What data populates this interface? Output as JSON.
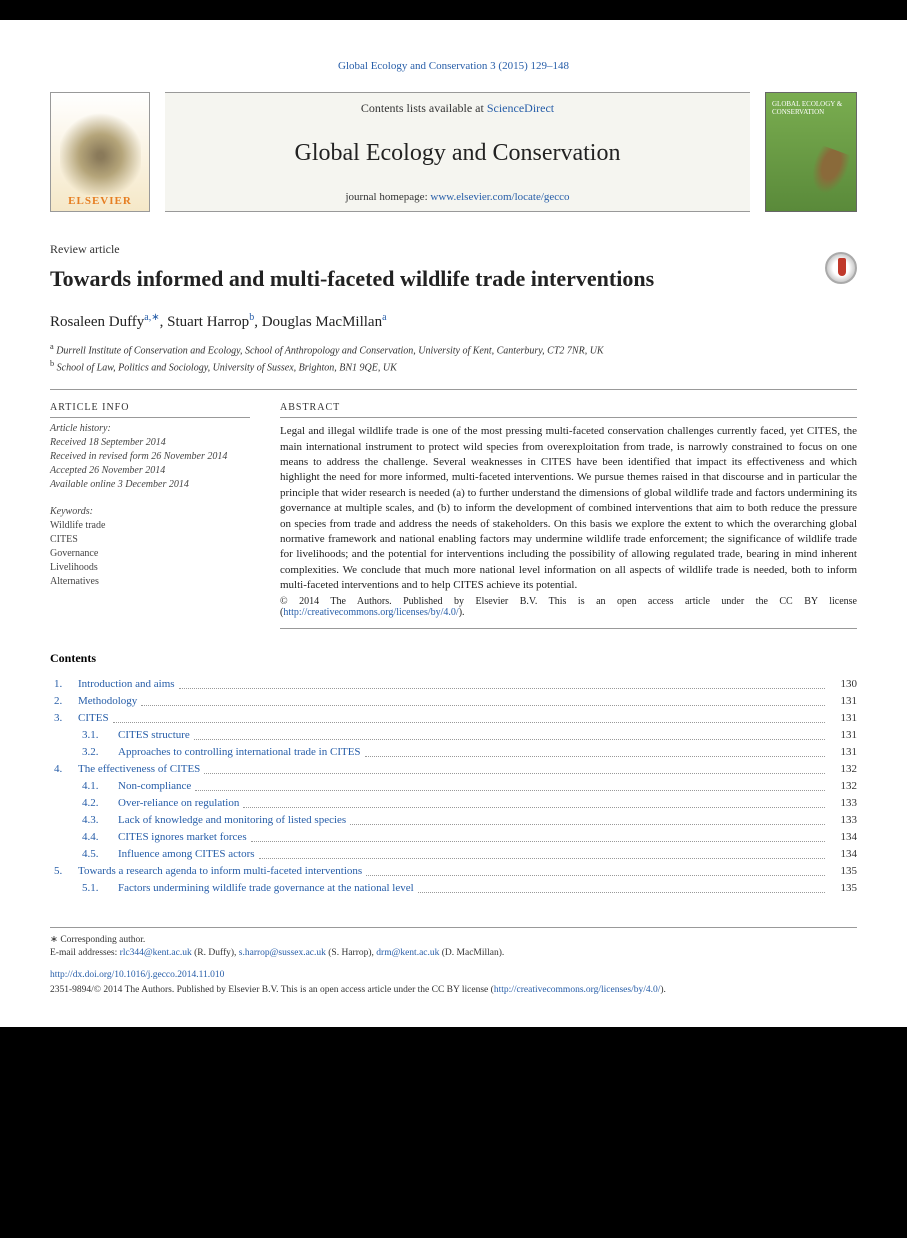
{
  "citation": "Global Ecology and Conservation 3 (2015) 129–148",
  "header": {
    "contents_prefix": "Contents lists available at ",
    "sciencedirect": "ScienceDirect",
    "journal": "Global Ecology and Conservation",
    "homepage_prefix": "journal homepage: ",
    "homepage_url": "www.elsevier.com/locate/gecco",
    "elsevier": "ELSEVIER",
    "cover_text": "GLOBAL ECOLOGY & CONSERVATION"
  },
  "article_type": "Review article",
  "title": "Towards informed and multi-faceted wildlife trade interventions",
  "authors": [
    {
      "name": "Rosaleen Duffy",
      "sup": "a,∗"
    },
    {
      "name": "Stuart Harrop",
      "sup": "b"
    },
    {
      "name": "Douglas MacMillan",
      "sup": "a"
    }
  ],
  "affiliations": [
    {
      "sup": "a",
      "text": "Durrell Institute of Conservation and Ecology, School of Anthropology and Conservation, University of Kent, Canterbury, CT2 7NR, UK"
    },
    {
      "sup": "b",
      "text": "School of Law, Politics and Sociology, University of Sussex, Brighton, BN1 9QE, UK"
    }
  ],
  "info_heading": "ARTICLE INFO",
  "history_heading": "Article history:",
  "history": [
    "Received 18 September 2014",
    "Received in revised form 26 November 2014",
    "Accepted 26 November 2014",
    "Available online 3 December 2014"
  ],
  "keywords_heading": "Keywords:",
  "keywords": [
    "Wildlife trade",
    "CITES",
    "Governance",
    "Livelihoods",
    "Alternatives"
  ],
  "abstract_heading": "ABSTRACT",
  "abstract": "Legal and illegal wildlife trade is one of the most pressing multi-faceted conservation challenges currently faced, yet CITES, the main international instrument to protect wild species from overexploitation from trade, is narrowly constrained to focus on one means to address the challenge. Several weaknesses in CITES have been identified that impact its effectiveness and which highlight the need for more informed, multi-faceted interventions. We pursue themes raised in that discourse and in particular the principle that wider research is needed (a) to further understand the dimensions of global wildlife trade and factors undermining its governance at multiple scales, and (b) to inform the development of combined interventions that aim to both reduce the pressure on species from trade and address the needs of stakeholders. On this basis we explore the extent to which the overarching global normative framework and national enabling factors may undermine wildlife trade enforcement; the significance of wildlife trade for livelihoods; and the potential for interventions including the possibility of allowing regulated trade, bearing in mind inherent complexities. We conclude that much more national level information on all aspects of wildlife trade is needed, both to inform multi-faceted interventions and to help CITES achieve its potential.",
  "copyright": "© 2014 The Authors. Published by Elsevier B.V. This is an open access article under the CC BY license (",
  "license_url": "http://creativecommons.org/licenses/by/4.0/",
  "license_close": ").",
  "contents_heading": "Contents",
  "toc": [
    {
      "n": "1.",
      "sub": "",
      "t": "Introduction and aims",
      "p": "130"
    },
    {
      "n": "2.",
      "sub": "",
      "t": "Methodology",
      "p": "131"
    },
    {
      "n": "3.",
      "sub": "",
      "t": "CITES",
      "p": "131"
    },
    {
      "n": "",
      "sub": "3.1.",
      "t": "CITES structure",
      "p": "131"
    },
    {
      "n": "",
      "sub": "3.2.",
      "t": "Approaches to controlling international trade in CITES",
      "p": "131"
    },
    {
      "n": "4.",
      "sub": "",
      "t": "The effectiveness of CITES",
      "p": "132"
    },
    {
      "n": "",
      "sub": "4.1.",
      "t": "Non-compliance",
      "p": "132"
    },
    {
      "n": "",
      "sub": "4.2.",
      "t": "Over-reliance on regulation",
      "p": "133"
    },
    {
      "n": "",
      "sub": "4.3.",
      "t": "Lack of knowledge and monitoring of listed species",
      "p": "133"
    },
    {
      "n": "",
      "sub": "4.4.",
      "t": "CITES ignores market forces",
      "p": "134"
    },
    {
      "n": "",
      "sub": "4.5.",
      "t": "Influence among CITES actors",
      "p": "134"
    },
    {
      "n": "5.",
      "sub": "",
      "t": "Towards a research agenda to inform multi-faceted interventions",
      "p": "135"
    },
    {
      "n": "",
      "sub": "5.1.",
      "t": "Factors undermining wildlife trade governance at the national level",
      "p": "135"
    }
  ],
  "footnotes": {
    "corr": "∗ Corresponding author.",
    "emails_prefix": "E-mail addresses: ",
    "emails": [
      {
        "email": "rlc344@kent.ac.uk",
        "who": " (R. Duffy), "
      },
      {
        "email": "s.harrop@sussex.ac.uk",
        "who": " (S. Harrop), "
      },
      {
        "email": "drm@kent.ac.uk",
        "who": " (D. MacMillan)."
      }
    ],
    "doi": "http://dx.doi.org/10.1016/j.gecco.2014.11.010",
    "issn_line": "2351-9894/© 2014 The Authors. Published by Elsevier B.V. This is an open access article under the CC BY license (",
    "foot_license": "http://creativecommons.org/licenses/by/4.0/",
    "foot_close": ")."
  }
}
